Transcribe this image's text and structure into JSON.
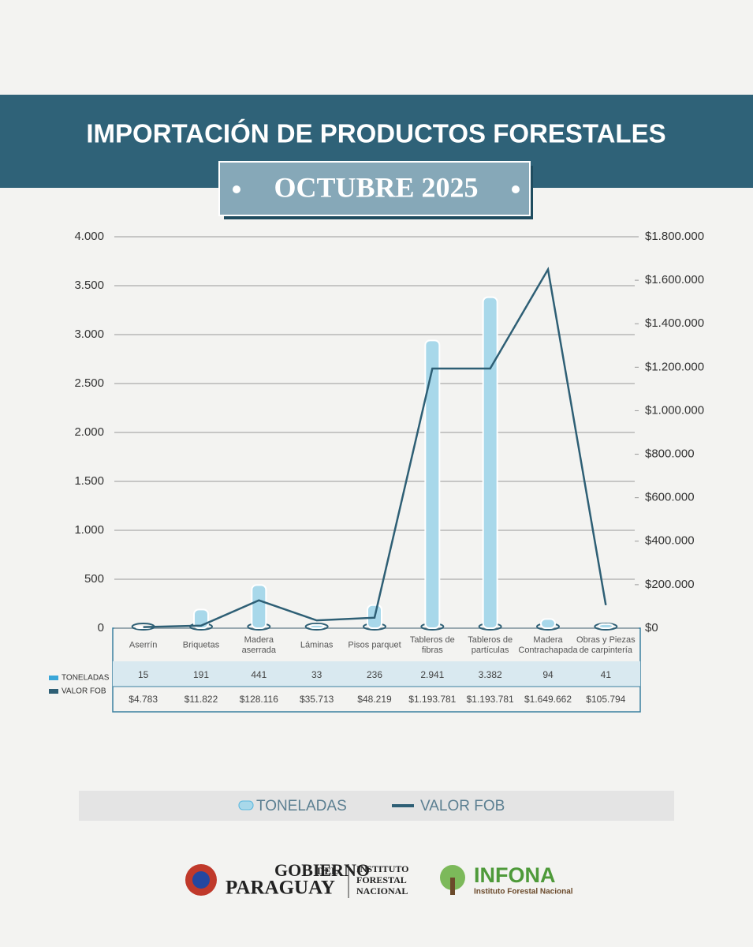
{
  "header": {
    "title": "IMPORTACIÓN DE PRODUCTOS FORESTALES",
    "subtitle": "OCTUBRE 2025"
  },
  "chart_data": {
    "type": "combo",
    "categories": [
      "Aserrín",
      "Briquetas",
      "Madera aserrada",
      "Láminas",
      "Pisos parquet",
      "Tableros de fibras",
      "Tableros de partículas",
      "Madera Contrachapada",
      "Obras y Piezas de carpintería"
    ],
    "series": [
      {
        "name": "TONELADAS",
        "type": "bar",
        "color": "#a8d8ea",
        "values": [
          15,
          191,
          441,
          33,
          236,
          2941,
          3382,
          94,
          41
        ],
        "value_labels": [
          "15",
          "191",
          "441",
          "33",
          "236",
          "2.941",
          "3.382",
          "94",
          "41"
        ]
      },
      {
        "name": "VALOR FOB",
        "type": "line",
        "axis": "y2",
        "color": "#2e5f75",
        "values": [
          4783,
          11822,
          128116,
          35713,
          48219,
          1193781,
          1193781,
          1649662,
          105794
        ],
        "value_labels": [
          "$4.783",
          "$11.822",
          "$128.116",
          "$35.713",
          "$48.219",
          "$1.193.781",
          "$1.193.781",
          "$1.649.662",
          "$105.794"
        ]
      }
    ],
    "ylim": [
      0,
      4000
    ],
    "yticks": [
      0,
      500,
      {
        "value": 1000,
        "label": "1.000"
      },
      {
        "value": 1500,
        "label": "1.500"
      },
      {
        "value": 2000,
        "label": "2.000"
      },
      {
        "value": 2500,
        "label": "2.500"
      },
      {
        "value": 3000,
        "label": "3.000"
      },
      {
        "value": 3500,
        "label": "3.500"
      },
      {
        "value": 4000,
        "label": "4.000"
      }
    ],
    "y2lim": [
      0,
      1800000
    ],
    "y2ticks": [
      {
        "value": 0,
        "label": "$0"
      },
      {
        "value": 200000,
        "label": "$200.000"
      },
      {
        "value": 400000,
        "label": "$400.000"
      },
      {
        "value": 600000,
        "label": "$600.000"
      },
      {
        "value": 800000,
        "label": "$800.000"
      },
      {
        "value": 1000000,
        "label": "$1.000.000"
      },
      {
        "value": 1200000,
        "label": "$1.200.000"
      },
      {
        "value": 1400000,
        "label": "$1.400.000"
      },
      {
        "value": 1600000,
        "label": "$1.600.000"
      },
      {
        "value": 1800000,
        "label": "$1.800.000"
      }
    ],
    "grid": true,
    "legend": "bottom"
  },
  "footer": {
    "gov1": "GOBIERNO",
    "gov_del": "DEL",
    "gov2": "PARAGUAY",
    "institute": "INSTITUTO FORESTAL NACIONAL",
    "infona": "INFONA",
    "infona_sub": "Instituto Forestal Nacional"
  }
}
